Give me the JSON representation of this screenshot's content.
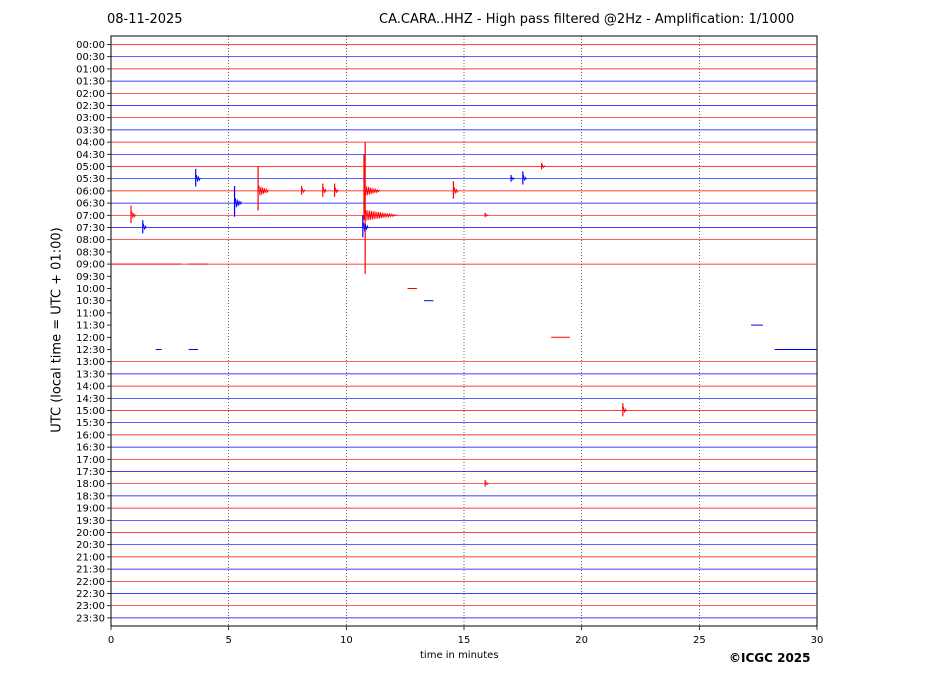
{
  "header": {
    "date": "08-11-2025",
    "station": "CA.CARA..HHZ - High pass filtered @2Hz - Amplification: 1/1000"
  },
  "footer": {
    "xlabel": "time in minutes",
    "copyright": "©ICGC 2025"
  },
  "chart_data": {
    "type": "line",
    "title": "CA.CARA..HHZ - High pass filtered @2Hz - Amplification: 1/1000",
    "xlabel": "time in minutes",
    "ylabel": "UTC (local time = UTC + 01:00)",
    "xlim": [
      0,
      30
    ],
    "xticks": [
      0,
      5,
      10,
      15,
      20,
      25,
      30
    ],
    "grid": "vertical dotted lines at x ticks",
    "colors": {
      "odd_hour_rows": "#ff0000",
      "half_hour_rows": "#0000ff",
      "vgrid": "#000000"
    },
    "rows": [
      "00:00",
      "00:30",
      "01:00",
      "01:30",
      "02:00",
      "02:30",
      "03:00",
      "03:30",
      "04:00",
      "04:30",
      "05:00",
      "05:30",
      "06:00",
      "06:30",
      "07:00",
      "07:30",
      "08:00",
      "08:30",
      "09:00",
      "09:30",
      "10:00",
      "10:30",
      "11:00",
      "11:30",
      "12:00",
      "12:30",
      "13:00",
      "13:30",
      "14:00",
      "14:30",
      "15:00",
      "15:30",
      "16:00",
      "16:30",
      "17:00",
      "17:30",
      "18:00",
      "18:30",
      "19:00",
      "19:30",
      "20:00",
      "20:30",
      "21:00",
      "21:30",
      "22:00",
      "22:30",
      "23:00",
      "23:30"
    ],
    "gap_rows": [
      "08:30",
      "09:30",
      "10:00",
      "10:30",
      "11:00",
      "11:30",
      "12:00",
      "12:30"
    ],
    "events": [
      {
        "row": "05:00",
        "x": 18.3,
        "amp": 0.3
      },
      {
        "row": "05:30",
        "x": 3.6,
        "amp": 0.8
      },
      {
        "row": "05:30",
        "x": 17.5,
        "amp": 0.6
      },
      {
        "row": "05:30",
        "x": 17.0,
        "amp": 0.3
      },
      {
        "row": "06:00",
        "x": 6.25,
        "amp": 2.0
      },
      {
        "row": "06:00",
        "x": 8.1,
        "amp": 0.4
      },
      {
        "row": "06:00",
        "x": 9.0,
        "amp": 0.6
      },
      {
        "row": "06:00",
        "x": 9.5,
        "amp": 0.6
      },
      {
        "row": "06:00",
        "x": 10.75,
        "amp": 3.0
      },
      {
        "row": "06:00",
        "x": 14.55,
        "amp": 0.8
      },
      {
        "row": "06:30",
        "x": 5.25,
        "amp": 1.4
      },
      {
        "row": "07:00",
        "x": 0.85,
        "amp": 0.8
      },
      {
        "row": "07:00",
        "x": 10.8,
        "amp": 6.0
      },
      {
        "row": "07:00",
        "x": 15.9,
        "amp": 0.2
      },
      {
        "row": "07:30",
        "x": 1.35,
        "amp": 0.6
      },
      {
        "row": "07:30",
        "x": 10.7,
        "amp": 1.0
      },
      {
        "row": "15:00",
        "x": 21.75,
        "amp": 0.6
      },
      {
        "row": "18:00",
        "x": 15.9,
        "amp": 0.3
      }
    ],
    "segments": [
      {
        "row": "09:00",
        "from": 0.0,
        "to": 3.0
      },
      {
        "row": "09:00",
        "from": 3.3,
        "to": 4.1
      },
      {
        "row": "10:00",
        "from": 12.6,
        "to": 13.0
      },
      {
        "row": "10:30",
        "from": 13.3,
        "to": 13.7
      },
      {
        "row": "12:00",
        "from": 18.7,
        "to": 19.5
      },
      {
        "row": "11:30",
        "from": 27.2,
        "to": 27.7
      },
      {
        "row": "12:30",
        "from": 28.2,
        "to": 30.0
      },
      {
        "row": "12:30",
        "from": 1.9,
        "to": 2.15
      },
      {
        "row": "12:30",
        "from": 3.3,
        "to": 3.7
      }
    ]
  }
}
